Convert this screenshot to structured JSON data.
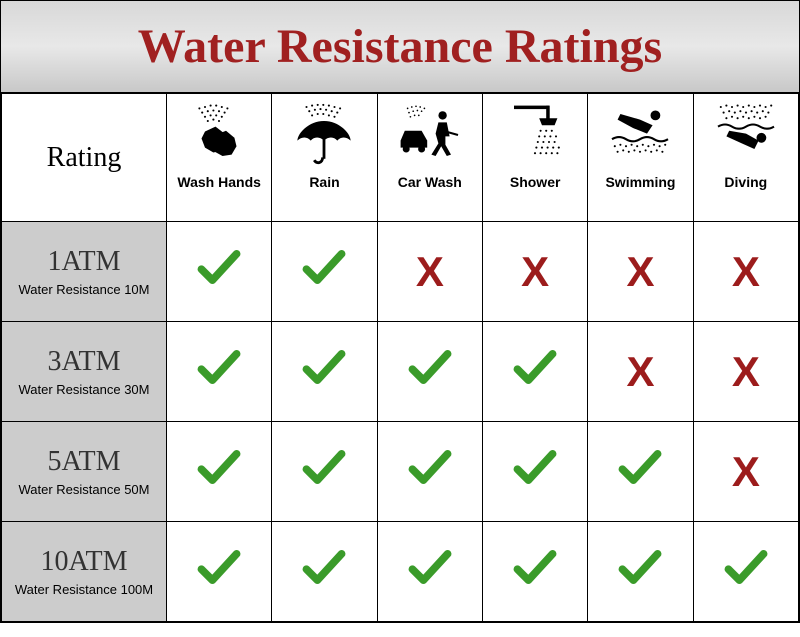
{
  "title": "Water Resistance Ratings",
  "colors": {
    "title_color": "#a02020",
    "header_gradient_top": "#d8d8d8",
    "header_gradient_mid": "#e8e8e8",
    "header_gradient_bot": "#c8c8c8",
    "rating_cell_bg": "#cccccc",
    "cell_bg": "#ffffff",
    "border": "#000000",
    "check": "#3a9b2a",
    "cross": "#9c1c1c"
  },
  "typography": {
    "title_fontsize": 48,
    "rating_header_fontsize": 28,
    "atm_fontsize": 28,
    "subtext_fontsize": 13,
    "icon_label_fontsize": 14,
    "mark_fontsize": 42
  },
  "table": {
    "rating_header": "Rating",
    "columns": [
      {
        "label": "Wash Hands",
        "icon": "wash-hands-icon"
      },
      {
        "label": "Rain",
        "icon": "umbrella-icon"
      },
      {
        "label": "Car Wash",
        "icon": "car-wash-icon"
      },
      {
        "label": "Shower",
        "icon": "shower-icon"
      },
      {
        "label": "Swimming",
        "icon": "swimming-icon"
      },
      {
        "label": "Diving",
        "icon": "diving-icon"
      }
    ],
    "rows": [
      {
        "atm": "1ATM",
        "subtext": "Water Resistance 10M",
        "marks": [
          "check",
          "check",
          "cross",
          "cross",
          "cross",
          "cross"
        ]
      },
      {
        "atm": "3ATM",
        "subtext": "Water Resistance 30M",
        "marks": [
          "check",
          "check",
          "check",
          "check",
          "cross",
          "cross"
        ]
      },
      {
        "atm": "5ATM",
        "subtext": "Water Resistance 50M",
        "marks": [
          "check",
          "check",
          "check",
          "check",
          "check",
          "cross"
        ]
      },
      {
        "atm": "10ATM",
        "subtext": "Water Resistance 100M",
        "marks": [
          "check",
          "check",
          "check",
          "check",
          "check",
          "check"
        ]
      }
    ]
  },
  "marks": {
    "check": "✔",
    "cross": "X"
  }
}
